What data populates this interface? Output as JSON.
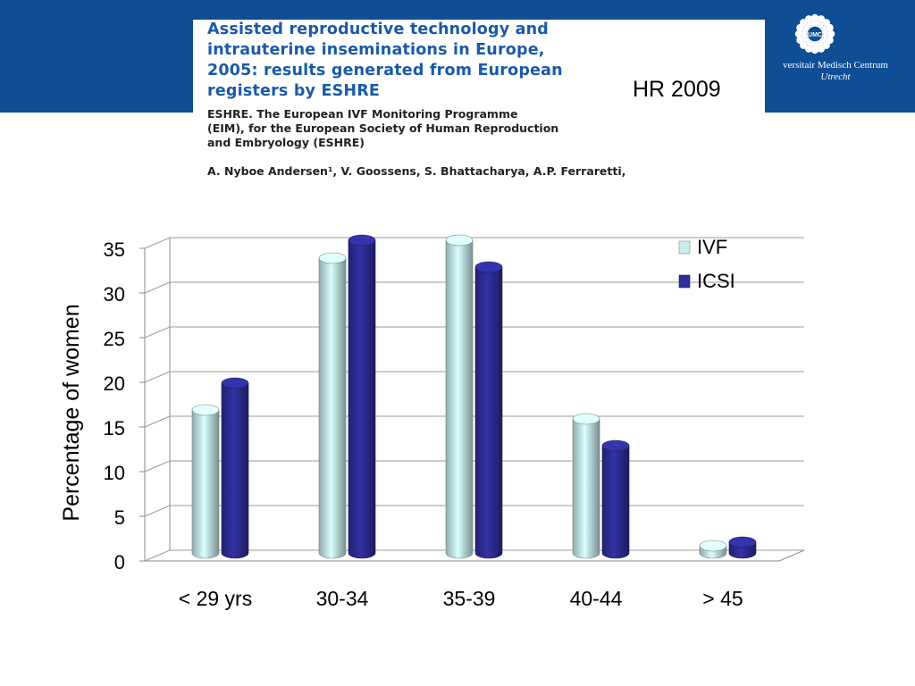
{
  "header": {
    "paper_title_lines": [
      "Assisted reproductive technology and",
      "intrauterine inseminations in Europe,",
      "2005: results generated from European",
      "registers by ESHRE"
    ],
    "journal_tag": "HR 2009",
    "ref_lines": [
      "ESHRE. The European IVF Monitoring Programme",
      "(EIM), for the European Society of Human Reproduction",
      "and Embryology (ESHRE)"
    ],
    "authors": "A. Nyboe Andersen¹, V. Goossens, S. Bhattacharya, A.P. Ferraretti,",
    "brand_colors": {
      "banner": "#0f4d95",
      "title": "#1a5aa6"
    }
  },
  "logo": {
    "emblem_text": "UMC",
    "name": "versitair Medisch Centrum",
    "city": "Utrecht",
    "icon": "umc-sun-icon"
  },
  "chart_data": {
    "type": "bar",
    "categories": [
      "< 29 yrs",
      "30-34",
      "35-39",
      "40-44",
      "> 45"
    ],
    "series": [
      {
        "name": "IVF",
        "values": [
          16,
          33,
          35,
          15,
          0.8
        ],
        "color": "#c9ecee"
      },
      {
        "name": "ICSI",
        "values": [
          19,
          35,
          32,
          12,
          1.2
        ],
        "color": "#2e2e9a"
      }
    ],
    "title": "",
    "xlabel": "",
    "ylabel": "Percentage of women",
    "ylim": [
      0,
      35
    ],
    "yticks": [
      0,
      5,
      10,
      15,
      20,
      25,
      30,
      35
    ],
    "grid": true,
    "legend": "top-right",
    "style": "3d-cylinder"
  }
}
